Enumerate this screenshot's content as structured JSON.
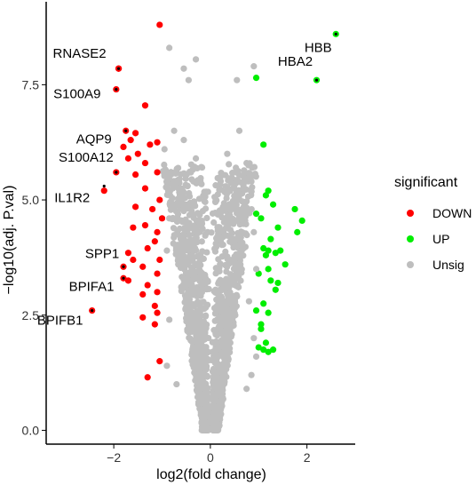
{
  "chart_data": {
    "type": "scatter",
    "title": "",
    "xlabel": "log2(fold change)",
    "ylabel": "−log10(adj. P.val)",
    "xlim": [
      -3.4,
      3.0
    ],
    "ylim": [
      -0.3,
      9.3
    ],
    "xticks": [
      -2,
      0,
      2
    ],
    "xtick_labels": [
      "−2",
      "0",
      "2"
    ],
    "yticks": [
      0.0,
      2.5,
      5.0,
      7.5
    ],
    "ytick_labels": [
      "0.0",
      "2.5",
      "5.0",
      "7.5"
    ],
    "grid": false,
    "legend": {
      "title": "significant",
      "position": "right",
      "entries": [
        {
          "label": "DOWN",
          "color": "#ff0000"
        },
        {
          "label": "UP",
          "color": "#00ee00"
        },
        {
          "label": "Unsig",
          "color": "#bebebe"
        }
      ]
    },
    "colors": {
      "DOWN": "#ff0000",
      "UP": "#00ee00",
      "Unsig": "#bebebe",
      "highlight": "#000000"
    },
    "series": [
      {
        "name": "DOWN",
        "color": "#ff0000",
        "points": [
          [
            -1.05,
            8.8
          ],
          [
            -1.9,
            7.85
          ],
          [
            -1.95,
            7.4
          ],
          [
            -1.35,
            7.05
          ],
          [
            -1.75,
            6.5
          ],
          [
            -1.55,
            6.45
          ],
          [
            -1.65,
            6.3
          ],
          [
            -1.25,
            6.2
          ],
          [
            -1.1,
            6.25
          ],
          [
            -1.8,
            6.15
          ],
          [
            -1.5,
            6.0
          ],
          [
            -1.7,
            5.9
          ],
          [
            -1.35,
            5.8
          ],
          [
            -1.95,
            5.6
          ],
          [
            -1.55,
            5.55
          ],
          [
            -1.1,
            5.6
          ],
          [
            -1.35,
            5.25
          ],
          [
            -2.2,
            5.2
          ],
          [
            -1.05,
            5.0
          ],
          [
            -1.55,
            4.85
          ],
          [
            -1.2,
            4.8
          ],
          [
            -1.0,
            4.6
          ],
          [
            -1.35,
            4.45
          ],
          [
            -1.6,
            4.4
          ],
          [
            -1.1,
            4.3
          ],
          [
            -1.15,
            4.1
          ],
          [
            -1.3,
            3.95
          ],
          [
            -1.7,
            3.85
          ],
          [
            -1.6,
            3.7
          ],
          [
            -1.05,
            3.7
          ],
          [
            -1.4,
            3.55
          ],
          [
            -1.1,
            3.4
          ],
          [
            -1.7,
            3.25
          ],
          [
            -1.3,
            3.15
          ],
          [
            -1.1,
            3.0
          ],
          [
            -1.4,
            2.95
          ],
          [
            -1.15,
            2.7
          ],
          [
            -1.1,
            2.55
          ],
          [
            -1.4,
            2.45
          ],
          [
            -1.15,
            2.3
          ],
          [
            -2.45,
            2.6
          ],
          [
            -1.05,
            1.5
          ],
          [
            -1.3,
            1.15
          ],
          [
            -1.8,
            3.55
          ],
          [
            -1.8,
            3.3
          ],
          [
            -1.9,
            7.85
          ]
        ]
      },
      {
        "name": "UP",
        "color": "#00ee00",
        "points": [
          [
            2.6,
            8.6
          ],
          [
            2.2,
            7.6
          ],
          [
            0.95,
            7.65
          ],
          [
            1.1,
            6.2
          ],
          [
            1.2,
            5.2
          ],
          [
            1.15,
            5.1
          ],
          [
            1.75,
            4.8
          ],
          [
            1.3,
            4.9
          ],
          [
            0.95,
            4.7
          ],
          [
            1.9,
            4.55
          ],
          [
            1.05,
            4.6
          ],
          [
            1.8,
            4.3
          ],
          [
            1.4,
            4.4
          ],
          [
            1.25,
            4.15
          ],
          [
            1.1,
            3.95
          ],
          [
            1.2,
            3.9
          ],
          [
            1.15,
            3.8
          ],
          [
            1.35,
            3.85
          ],
          [
            1.45,
            3.9
          ],
          [
            1.55,
            3.6
          ],
          [
            1.0,
            3.4
          ],
          [
            1.25,
            3.25
          ],
          [
            1.4,
            3.2
          ],
          [
            1.35,
            3.05
          ],
          [
            1.1,
            2.75
          ],
          [
            0.95,
            2.6
          ],
          [
            1.2,
            2.55
          ],
          [
            1.05,
            2.3
          ],
          [
            1.05,
            2.2
          ],
          [
            1.15,
            1.9
          ],
          [
            1.1,
            1.75
          ],
          [
            1.3,
            1.75
          ],
          [
            1.0,
            1.8
          ],
          [
            1.2,
            1.7
          ],
          [
            1.2,
            3.5
          ]
        ]
      },
      {
        "name": "Unsig",
        "color": "#bebebe",
        "points": [
          [
            -0.85,
            8.3
          ],
          [
            -0.55,
            7.85
          ],
          [
            -0.3,
            8.05
          ],
          [
            -0.45,
            7.6
          ],
          [
            0.55,
            7.6
          ],
          [
            0.9,
            7.9
          ],
          [
            -0.75,
            6.5
          ],
          [
            -0.55,
            6.3
          ],
          [
            -0.95,
            6.1
          ],
          [
            0.6,
            6.5
          ],
          [
            0.35,
            6.0
          ],
          [
            -0.3,
            5.9
          ],
          [
            0.75,
            5.8
          ],
          [
            -0.85,
            5.2
          ],
          [
            0.85,
            5.4
          ],
          [
            -0.65,
            4.9
          ],
          [
            0.65,
            4.7
          ],
          [
            0.9,
            4.3
          ],
          [
            -0.9,
            3.9
          ],
          [
            0.95,
            3.5
          ],
          [
            -0.85,
            2.4
          ],
          [
            0.9,
            2.0
          ],
          [
            -0.9,
            1.4
          ],
          [
            0.85,
            1.2
          ],
          [
            -0.7,
            1.0
          ],
          [
            0.75,
            0.9
          ],
          [
            -0.95,
            5.55
          ],
          [
            -0.85,
            4.6
          ],
          [
            0.95,
            1.6
          ],
          [
            0.8,
            2.8
          ]
        ],
        "cloud": {
          "center_x": 0.0,
          "peak_y": 5.8,
          "half_width_base": 0.85,
          "note_points": 1800
        }
      }
    ],
    "annotations": [
      {
        "label": "RNASE2",
        "x": -1.9,
        "y": 7.85
      },
      {
        "label": "S100A9",
        "x": -1.95,
        "y": 7.4
      },
      {
        "label": "AQP9",
        "x": -1.75,
        "y": 6.5
      },
      {
        "label": "S100A12",
        "x": -1.95,
        "y": 5.6
      },
      {
        "label": "IL1R2",
        "x": -2.2,
        "y": 5.3
      },
      {
        "label": "SPP1",
        "x": -1.8,
        "y": 3.55
      },
      {
        "label": "BPIFA1",
        "x": -1.8,
        "y": 3.3
      },
      {
        "label": "BPIFB1",
        "x": -2.45,
        "y": 2.6
      },
      {
        "label": "HBB",
        "x": 2.6,
        "y": 8.6
      },
      {
        "label": "HBA2",
        "x": 2.2,
        "y": 7.6
      }
    ]
  }
}
